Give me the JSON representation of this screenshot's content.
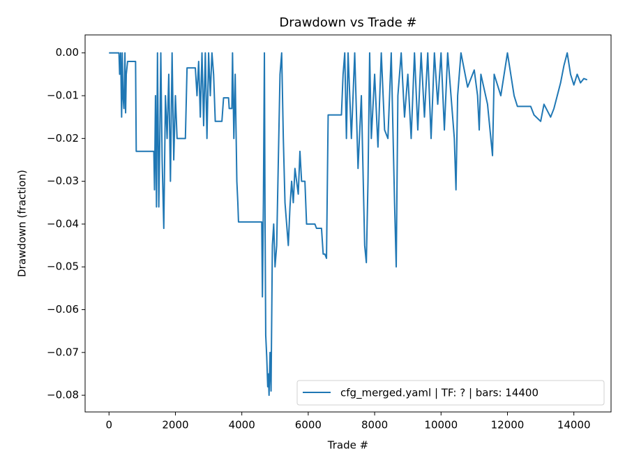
{
  "chart_data": {
    "type": "line",
    "title": "Drawdown vs Trade #",
    "xlabel": "Trade #",
    "ylabel": "Drawdown (fraction)",
    "xlim": [
      -720,
      15120
    ],
    "ylim": [
      -0.0839,
      0.0042
    ],
    "xticks": [
      0,
      2000,
      4000,
      6000,
      8000,
      10000,
      12000,
      14000
    ],
    "yticks": [
      {
        "value": -0.08,
        "label": "−0.08"
      },
      {
        "value": -0.07,
        "label": "−0.07"
      },
      {
        "value": -0.06,
        "label": "−0.06"
      },
      {
        "value": -0.05,
        "label": "−0.05"
      },
      {
        "value": -0.04,
        "label": "−0.04"
      },
      {
        "value": -0.03,
        "label": "−0.03"
      },
      {
        "value": -0.02,
        "label": "−0.02"
      },
      {
        "value": -0.01,
        "label": "−0.01"
      },
      {
        "value": 0,
        "label": "0.00"
      }
    ],
    "legend": "lower right",
    "x": [
      0,
      300,
      320,
      350,
      380,
      400,
      420,
      450,
      480,
      500,
      520,
      560,
      800,
      820,
      1350,
      1370,
      1400,
      1430,
      1460,
      1500,
      1530,
      1560,
      1600,
      1650,
      1700,
      1750,
      1800,
      1850,
      1900,
      1950,
      2000,
      2050,
      2300,
      2350,
      2600,
      2650,
      2700,
      2750,
      2800,
      2850,
      2900,
      2950,
      3000,
      3050,
      3100,
      3150,
      3200,
      3400,
      3450,
      3600,
      3620,
      3700,
      3720,
      3760,
      3800,
      3850,
      3880,
      3900,
      4600,
      4620,
      4650,
      4680,
      4700,
      4720,
      4750,
      4780,
      4800,
      4820,
      4850,
      4880,
      4920,
      4960,
      5000,
      5050,
      5100,
      5150,
      5200,
      5250,
      5300,
      5400,
      5450,
      5500,
      5550,
      5600,
      5700,
      5750,
      5800,
      5900,
      5950,
      6200,
      6250,
      6400,
      6450,
      6500,
      6550,
      6600,
      7000,
      7050,
      7100,
      7150,
      7200,
      7300,
      7400,
      7500,
      7600,
      7700,
      7750,
      7800,
      7850,
      7900,
      8000,
      8100,
      8200,
      8300,
      8400,
      8500,
      8600,
      8650,
      8700,
      8800,
      8900,
      9000,
      9100,
      9200,
      9300,
      9400,
      9500,
      9600,
      9700,
      9800,
      9900,
      10000,
      10100,
      10200,
      10300,
      10400,
      10450,
      10500,
      10600,
      10800,
      11000,
      11100,
      11150,
      11200,
      11400,
      11550,
      11600,
      11800,
      12000,
      12100,
      12200,
      12300,
      12700,
      12800,
      13000,
      13100,
      13300,
      13400,
      13500,
      13600,
      13700,
      13800,
      13900,
      14000,
      14100,
      14200,
      14300,
      14400
    ],
    "series": [
      {
        "name": "cfg_merged.yaml | TF: ? | bars: 14400",
        "color": "#1f77b4",
        "values": [
          0,
          0,
          -0.005,
          0,
          -0.015,
          0,
          -0.01,
          -0.013,
          0,
          -0.014,
          -0.005,
          -0.002,
          -0.002,
          -0.023,
          -0.023,
          -0.032,
          -0.01,
          -0.036,
          0,
          -0.036,
          -0.02,
          0,
          -0.025,
          -0.041,
          -0.01,
          -0.02,
          -0.005,
          -0.03,
          0,
          -0.025,
          -0.01,
          -0.02,
          -0.02,
          -0.0035,
          -0.0035,
          -0.01,
          -0.002,
          -0.015,
          0,
          -0.017,
          0,
          -0.02,
          0,
          -0.01,
          0,
          -0.005,
          -0.016,
          -0.016,
          -0.0105,
          -0.0105,
          -0.013,
          -0.013,
          0,
          -0.02,
          -0.005,
          -0.03,
          -0.035,
          -0.0395,
          -0.0395,
          -0.057,
          -0.035,
          0,
          -0.04,
          -0.066,
          -0.071,
          -0.078,
          -0.075,
          -0.08,
          -0.07,
          -0.079,
          -0.045,
          -0.04,
          -0.05,
          -0.045,
          -0.025,
          -0.005,
          0,
          -0.02,
          -0.035,
          -0.045,
          -0.036,
          -0.03,
          -0.035,
          -0.027,
          -0.033,
          -0.023,
          -0.03,
          -0.03,
          -0.04,
          -0.04,
          -0.041,
          -0.041,
          -0.047,
          -0.047,
          -0.048,
          -0.0145,
          -0.0145,
          -0.005,
          0,
          -0.02,
          0,
          -0.02,
          0,
          -0.027,
          -0.01,
          -0.045,
          -0.049,
          -0.03,
          0,
          -0.02,
          -0.005,
          -0.022,
          0,
          -0.018,
          -0.02,
          0,
          -0.035,
          -0.05,
          -0.01,
          0,
          -0.015,
          -0.005,
          -0.02,
          0,
          -0.018,
          0,
          -0.015,
          0,
          -0.02,
          0,
          -0.012,
          0,
          -0.018,
          0,
          -0.01,
          -0.02,
          -0.032,
          -0.01,
          0,
          -0.008,
          -0.004,
          -0.01,
          -0.018,
          -0.005,
          -0.012,
          -0.024,
          -0.005,
          -0.01,
          0,
          -0.005,
          -0.01,
          -0.0125,
          -0.0125,
          -0.0145,
          -0.016,
          -0.012,
          -0.015,
          -0.013,
          -0.01,
          -0.007,
          -0.003,
          0,
          -0.005,
          -0.0075,
          -0.005,
          -0.007,
          -0.006,
          -0.0063
        ]
      }
    ]
  }
}
